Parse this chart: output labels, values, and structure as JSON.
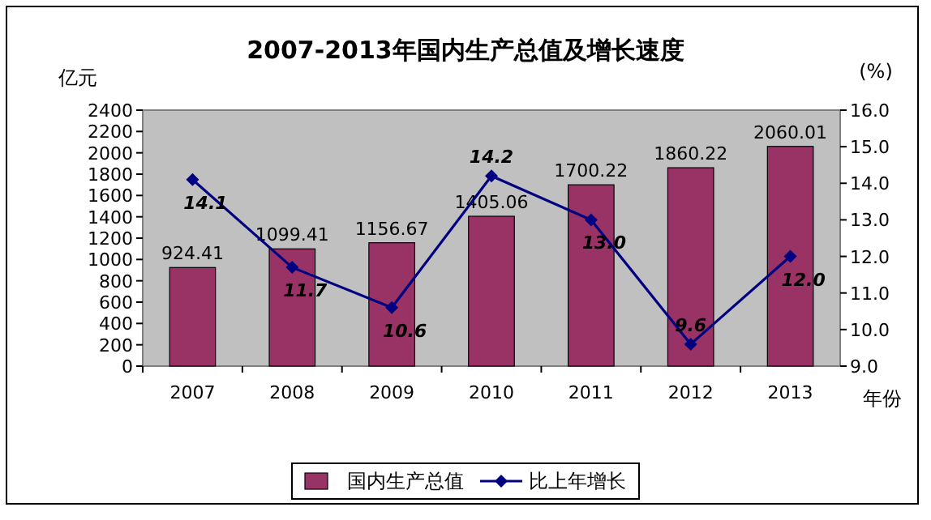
{
  "chart_data": {
    "type": "bar",
    "title": "2007-2013年国内生产总值及增长速度",
    "ylabel": "亿元",
    "y2label": "(%)",
    "xlabel": "年份",
    "categories": [
      "2007",
      "2008",
      "2009",
      "2010",
      "2011",
      "2012",
      "2013"
    ],
    "series": [
      {
        "name": "国内生产总值",
        "color": "#993366",
        "values": [
          924.41,
          1099.41,
          1156.67,
          1405.06,
          1700.22,
          1860.22,
          2060.01
        ]
      },
      {
        "name": "比上年增长",
        "type": "line",
        "axis": "y2",
        "color": "#000080",
        "marker": "diamond",
        "values": [
          14.1,
          11.7,
          10.6,
          14.2,
          13.0,
          9.6,
          12.0
        ],
        "value_labels": [
          "14.1",
          "11.7",
          "10.6",
          "14.2",
          "13.0",
          "9.6",
          "12.0"
        ]
      }
    ],
    "ylim": [
      0,
      2400
    ],
    "yticks": [
      0,
      200,
      400,
      600,
      800,
      1000,
      1200,
      1400,
      1600,
      1800,
      2000,
      2200,
      2400
    ],
    "y2lim": [
      9,
      16
    ],
    "y2ticks": [
      {
        "value": 9,
        "label": "9.0"
      },
      {
        "value": 10,
        "label": "10.0"
      },
      {
        "value": 11,
        "label": "11.0"
      },
      {
        "value": 12,
        "label": "12.0"
      },
      {
        "value": 13,
        "label": "13.0"
      },
      {
        "value": 14,
        "label": "14.0"
      },
      {
        "value": 15,
        "label": "15.0"
      },
      {
        "value": 16,
        "label": "16.0"
      }
    ],
    "data_labels": true,
    "legend": "bottom"
  }
}
